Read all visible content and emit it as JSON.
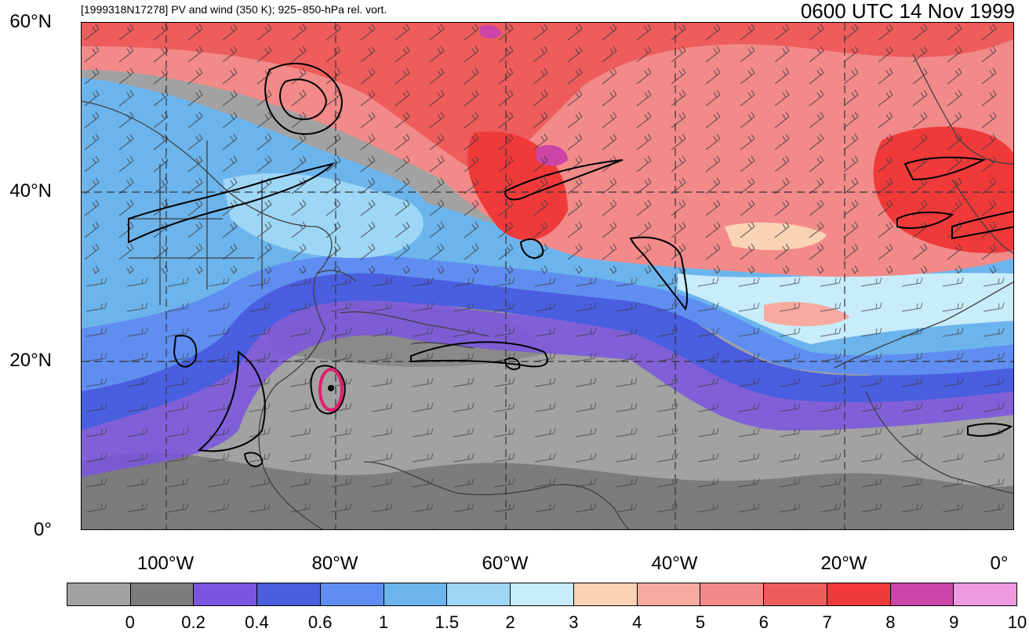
{
  "header": {
    "left_title": "[1999318N17278] PV and wind (350 K); 925−850-hPa rel. vort.",
    "right_title": "0600 UTC 14 Nov 1999"
  },
  "map": {
    "latitude_labels": [
      "60°N",
      "40°N",
      "20°N",
      "0°"
    ],
    "longitude_labels": [
      "100°W",
      "80°W",
      "60°W",
      "40°W",
      "20°W",
      "0°"
    ],
    "lon_range": [
      -110,
      0
    ],
    "lat_range": [
      0,
      60
    ],
    "gridlines": true,
    "fields": [
      "PV shading",
      "wind barbs",
      "relative vorticity contours"
    ],
    "storm_marker_color": "#e0206a"
  },
  "colorbar": {
    "labels": [
      "0",
      "0.2",
      "0.4",
      "0.6",
      "1",
      "1.5",
      "2",
      "3",
      "4",
      "5",
      "6",
      "7",
      "8",
      "9",
      "10"
    ],
    "colors": [
      "#a2a2a2",
      "#7c7c7c",
      "#7b55e0",
      "#4a5ee0",
      "#5f8ef0",
      "#6cb4ec",
      "#9ed6f6",
      "#c8ecfa",
      "#fad2b4",
      "#f7aaa0",
      "#f28a8a",
      "#ee5c5c",
      "#f03a3a",
      "#cc44a8",
      "#ee9ae0"
    ]
  }
}
